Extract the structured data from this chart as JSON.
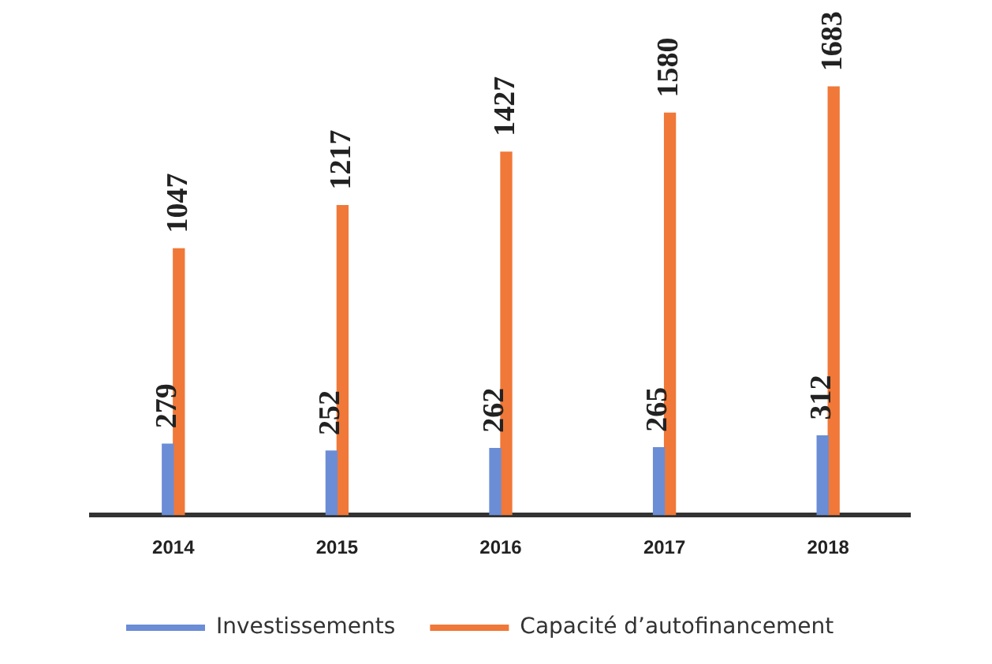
{
  "chart_data": {
    "type": "bar",
    "categories": [
      "2014",
      "2015",
      "2016",
      "2017",
      "2018"
    ],
    "series": [
      {
        "name": "Investissements",
        "color": "#6b8dd6",
        "values": [
          279,
          252,
          262,
          265,
          312
        ]
      },
      {
        "name": "Capacité d’autofinancement",
        "color": "#f07838",
        "values": [
          1047,
          1217,
          1427,
          1580,
          1683
        ]
      }
    ],
    "data_labels": true,
    "legend": "bottom",
    "grid": false
  }
}
